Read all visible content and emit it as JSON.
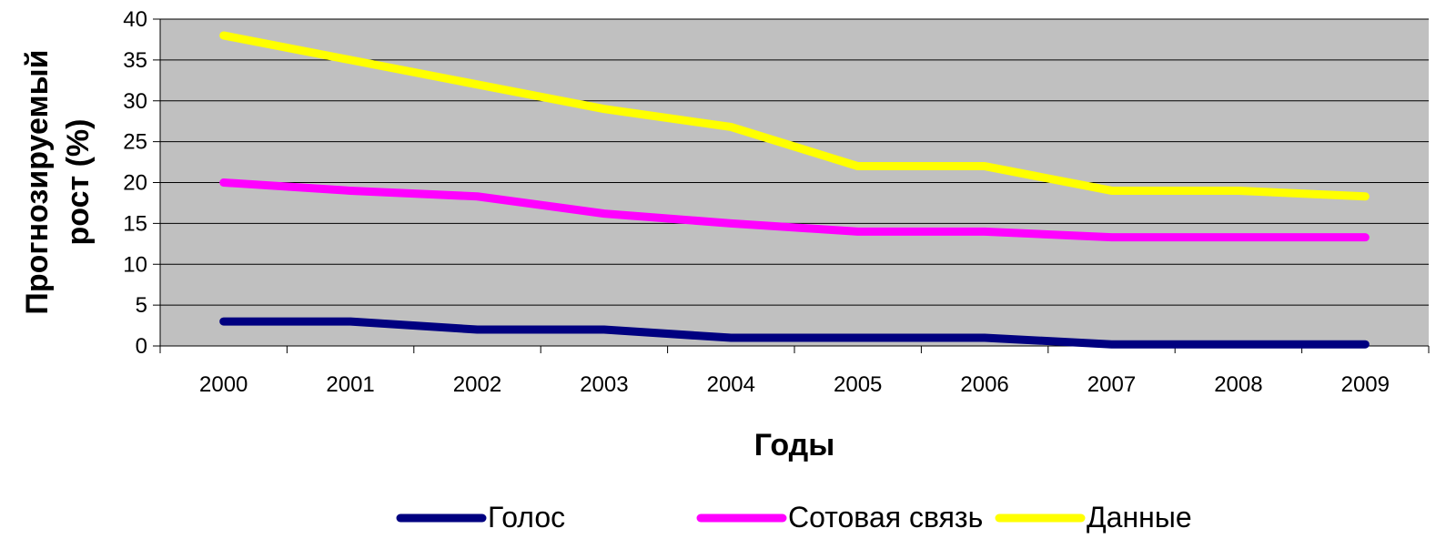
{
  "chart_data": {
    "type": "line",
    "categories": [
      "2000",
      "2001",
      "2002",
      "2003",
      "2004",
      "2005",
      "2006",
      "2007",
      "2008",
      "2009"
    ],
    "series": [
      {
        "name": "Голос",
        "color": "#000080",
        "values": [
          3,
          3,
          2,
          2,
          1,
          1,
          1,
          0.2,
          0.2,
          0.2
        ]
      },
      {
        "name": "Сотовая связь",
        "color": "#ff00ff",
        "values": [
          20,
          19,
          18.3,
          16.2,
          15,
          14,
          14,
          13.3,
          13.3,
          13.3
        ]
      },
      {
        "name": "Данные",
        "color": "#ffff00",
        "values": [
          38,
          35,
          32,
          29,
          26.8,
          22,
          22,
          19,
          19,
          18.3
        ]
      }
    ],
    "xlabel": "Годы",
    "ylabel_lines": [
      "Прогнозируемый",
      "рост  (%)"
    ],
    "ylim": [
      0,
      40
    ],
    "yticks": [
      "0",
      "5",
      "10",
      "15",
      "20",
      "25",
      "30",
      "35",
      "40"
    ],
    "grid": true,
    "plot_background": "#c0c0c0",
    "legend_position": "bottom"
  }
}
